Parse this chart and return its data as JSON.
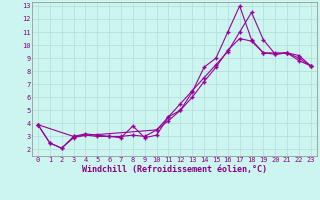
{
  "xlabel": "Windchill (Refroidissement éolien,°C)",
  "ylabel": "",
  "bg_color": "#cdf5ef",
  "grid_color": "#b0ddd8",
  "line_color": "#990099",
  "xlim": [
    -0.5,
    23.5
  ],
  "ylim": [
    1.5,
    13.3
  ],
  "xticks": [
    0,
    1,
    2,
    3,
    4,
    5,
    6,
    7,
    8,
    9,
    10,
    11,
    12,
    13,
    14,
    15,
    16,
    17,
    18,
    19,
    20,
    21,
    22,
    23
  ],
  "yticks": [
    2,
    3,
    4,
    5,
    6,
    7,
    8,
    9,
    10,
    11,
    12,
    13
  ],
  "line1_x": [
    0,
    1,
    2,
    3,
    4,
    5,
    6,
    7,
    8,
    9,
    10,
    11,
    12,
    13,
    14,
    15,
    16,
    17,
    18,
    19,
    20,
    21,
    22,
    23
  ],
  "line1_y": [
    3.9,
    2.5,
    2.1,
    3.0,
    3.2,
    3.1,
    3.0,
    2.9,
    3.8,
    2.9,
    3.1,
    4.5,
    5.0,
    6.4,
    8.3,
    9.0,
    11.0,
    13.0,
    10.4,
    9.4,
    9.4,
    9.4,
    8.8,
    8.4
  ],
  "line2_x": [
    0,
    1,
    2,
    3,
    4,
    5,
    6,
    7,
    8,
    9,
    10,
    11,
    12,
    13,
    14,
    15,
    16,
    17,
    18,
    19,
    20,
    21,
    22,
    23
  ],
  "line2_y": [
    3.9,
    2.5,
    2.1,
    2.9,
    3.1,
    3.0,
    3.0,
    3.0,
    3.1,
    3.0,
    3.5,
    4.2,
    5.0,
    6.0,
    7.2,
    8.3,
    9.6,
    10.5,
    10.3,
    9.4,
    9.3,
    9.4,
    9.2,
    8.4
  ],
  "line3_x": [
    0,
    3,
    10,
    11,
    12,
    13,
    14,
    15,
    16,
    17,
    18,
    19,
    20,
    21,
    22,
    23
  ],
  "line3_y": [
    3.9,
    3.0,
    3.5,
    4.5,
    5.5,
    6.5,
    7.5,
    8.5,
    9.5,
    11.0,
    12.5,
    10.4,
    9.3,
    9.4,
    9.0,
    8.4
  ],
  "marker": "+",
  "markersize": 3,
  "linewidth": 0.8,
  "tick_fontsize": 5,
  "xlabel_fontsize": 6
}
